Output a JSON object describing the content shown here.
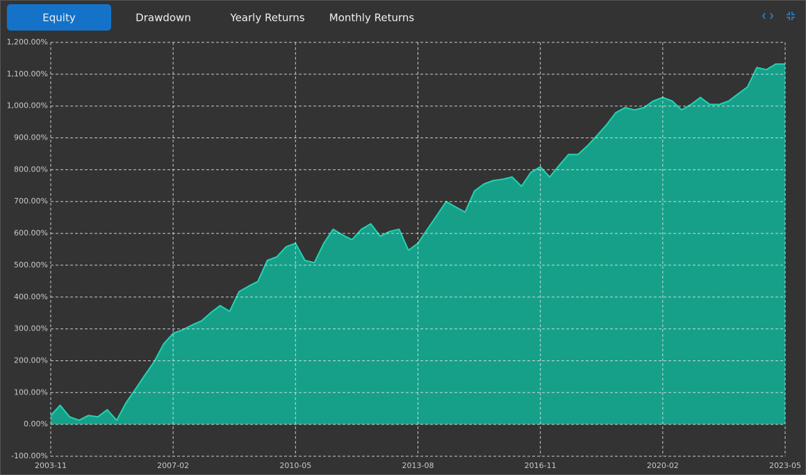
{
  "tabs": [
    "Equity",
    "Drawdown",
    "Yearly Returns",
    "Monthly Returns"
  ],
  "active_tab": 0,
  "chart_data": {
    "type": "area",
    "x": [
      "2003-11",
      "2004-02",
      "2004-05",
      "2004-08",
      "2004-11",
      "2005-02",
      "2005-05",
      "2005-08",
      "2005-11",
      "2006-02",
      "2006-05",
      "2006-08",
      "2006-11",
      "2007-02",
      "2007-05",
      "2007-08",
      "2007-11",
      "2008-02",
      "2008-05",
      "2008-08",
      "2008-11",
      "2009-02",
      "2009-05",
      "2009-08",
      "2009-11",
      "2010-02",
      "2010-05",
      "2010-08",
      "2010-11",
      "2011-02",
      "2011-05",
      "2011-08",
      "2011-11",
      "2012-02",
      "2012-05",
      "2012-08",
      "2012-11",
      "2013-02",
      "2013-05",
      "2013-08",
      "2013-11",
      "2014-02",
      "2014-05",
      "2014-08",
      "2014-11",
      "2015-02",
      "2015-05",
      "2015-08",
      "2015-11",
      "2016-02",
      "2016-05",
      "2016-08",
      "2016-11",
      "2017-02",
      "2017-05",
      "2017-08",
      "2017-11",
      "2018-02",
      "2018-05",
      "2018-08",
      "2018-11",
      "2019-02",
      "2019-05",
      "2019-08",
      "2019-11",
      "2020-02",
      "2020-05",
      "2020-08",
      "2020-11",
      "2021-02",
      "2021-05",
      "2021-08",
      "2021-11",
      "2022-02",
      "2022-05",
      "2022-08",
      "2022-11",
      "2023-02",
      "2023-05"
    ],
    "values": [
      28,
      60,
      24,
      13,
      28,
      24,
      46,
      13,
      68,
      111,
      155,
      198,
      253,
      286,
      297,
      312,
      325,
      351,
      373,
      355,
      417,
      434,
      449,
      515,
      526,
      558,
      569,
      515,
      508,
      569,
      613,
      595,
      580,
      613,
      630,
      591,
      606,
      613,
      547,
      569,
      613,
      656,
      700,
      683,
      667,
      733,
      755,
      766,
      770,
      777,
      748,
      792,
      809,
      777,
      814,
      848,
      848,
      875,
      907,
      940,
      979,
      995,
      988,
      995,
      1016,
      1027,
      1016,
      988,
      1005,
      1027,
      1005,
      1005,
      1016,
      1038,
      1060,
      1121,
      1114,
      1132,
      1132
    ],
    "color": "#16a08a",
    "line_color": "#22d3b0",
    "xlim": [
      "2003-11",
      "2023-05"
    ],
    "xticks": [
      "2003-11",
      "2007-02",
      "2010-05",
      "2013-08",
      "2016-11",
      "2020-02",
      "2023-05"
    ],
    "ylim": [
      -100,
      1200
    ],
    "yticks": [
      {
        "value": -100,
        "label": "-100.00%"
      },
      {
        "value": 0,
        "label": "0.00%"
      },
      {
        "value": 100,
        "label": "100.00%"
      },
      {
        "value": 200,
        "label": "200.00%"
      },
      {
        "value": 300,
        "label": "300.00%"
      },
      {
        "value": 400,
        "label": "400.00%"
      },
      {
        "value": 500,
        "label": "500.00%"
      },
      {
        "value": 600,
        "label": "600.00%"
      },
      {
        "value": 700,
        "label": "700.00%"
      },
      {
        "value": 800,
        "label": "800.00%"
      },
      {
        "value": 900,
        "label": "900.00%"
      },
      {
        "value": 1000,
        "label": "1,000.00%"
      },
      {
        "value": 1100,
        "label": "1,100.00%"
      },
      {
        "value": 1200,
        "label": "1,200.00%"
      }
    ],
    "grid": true
  }
}
